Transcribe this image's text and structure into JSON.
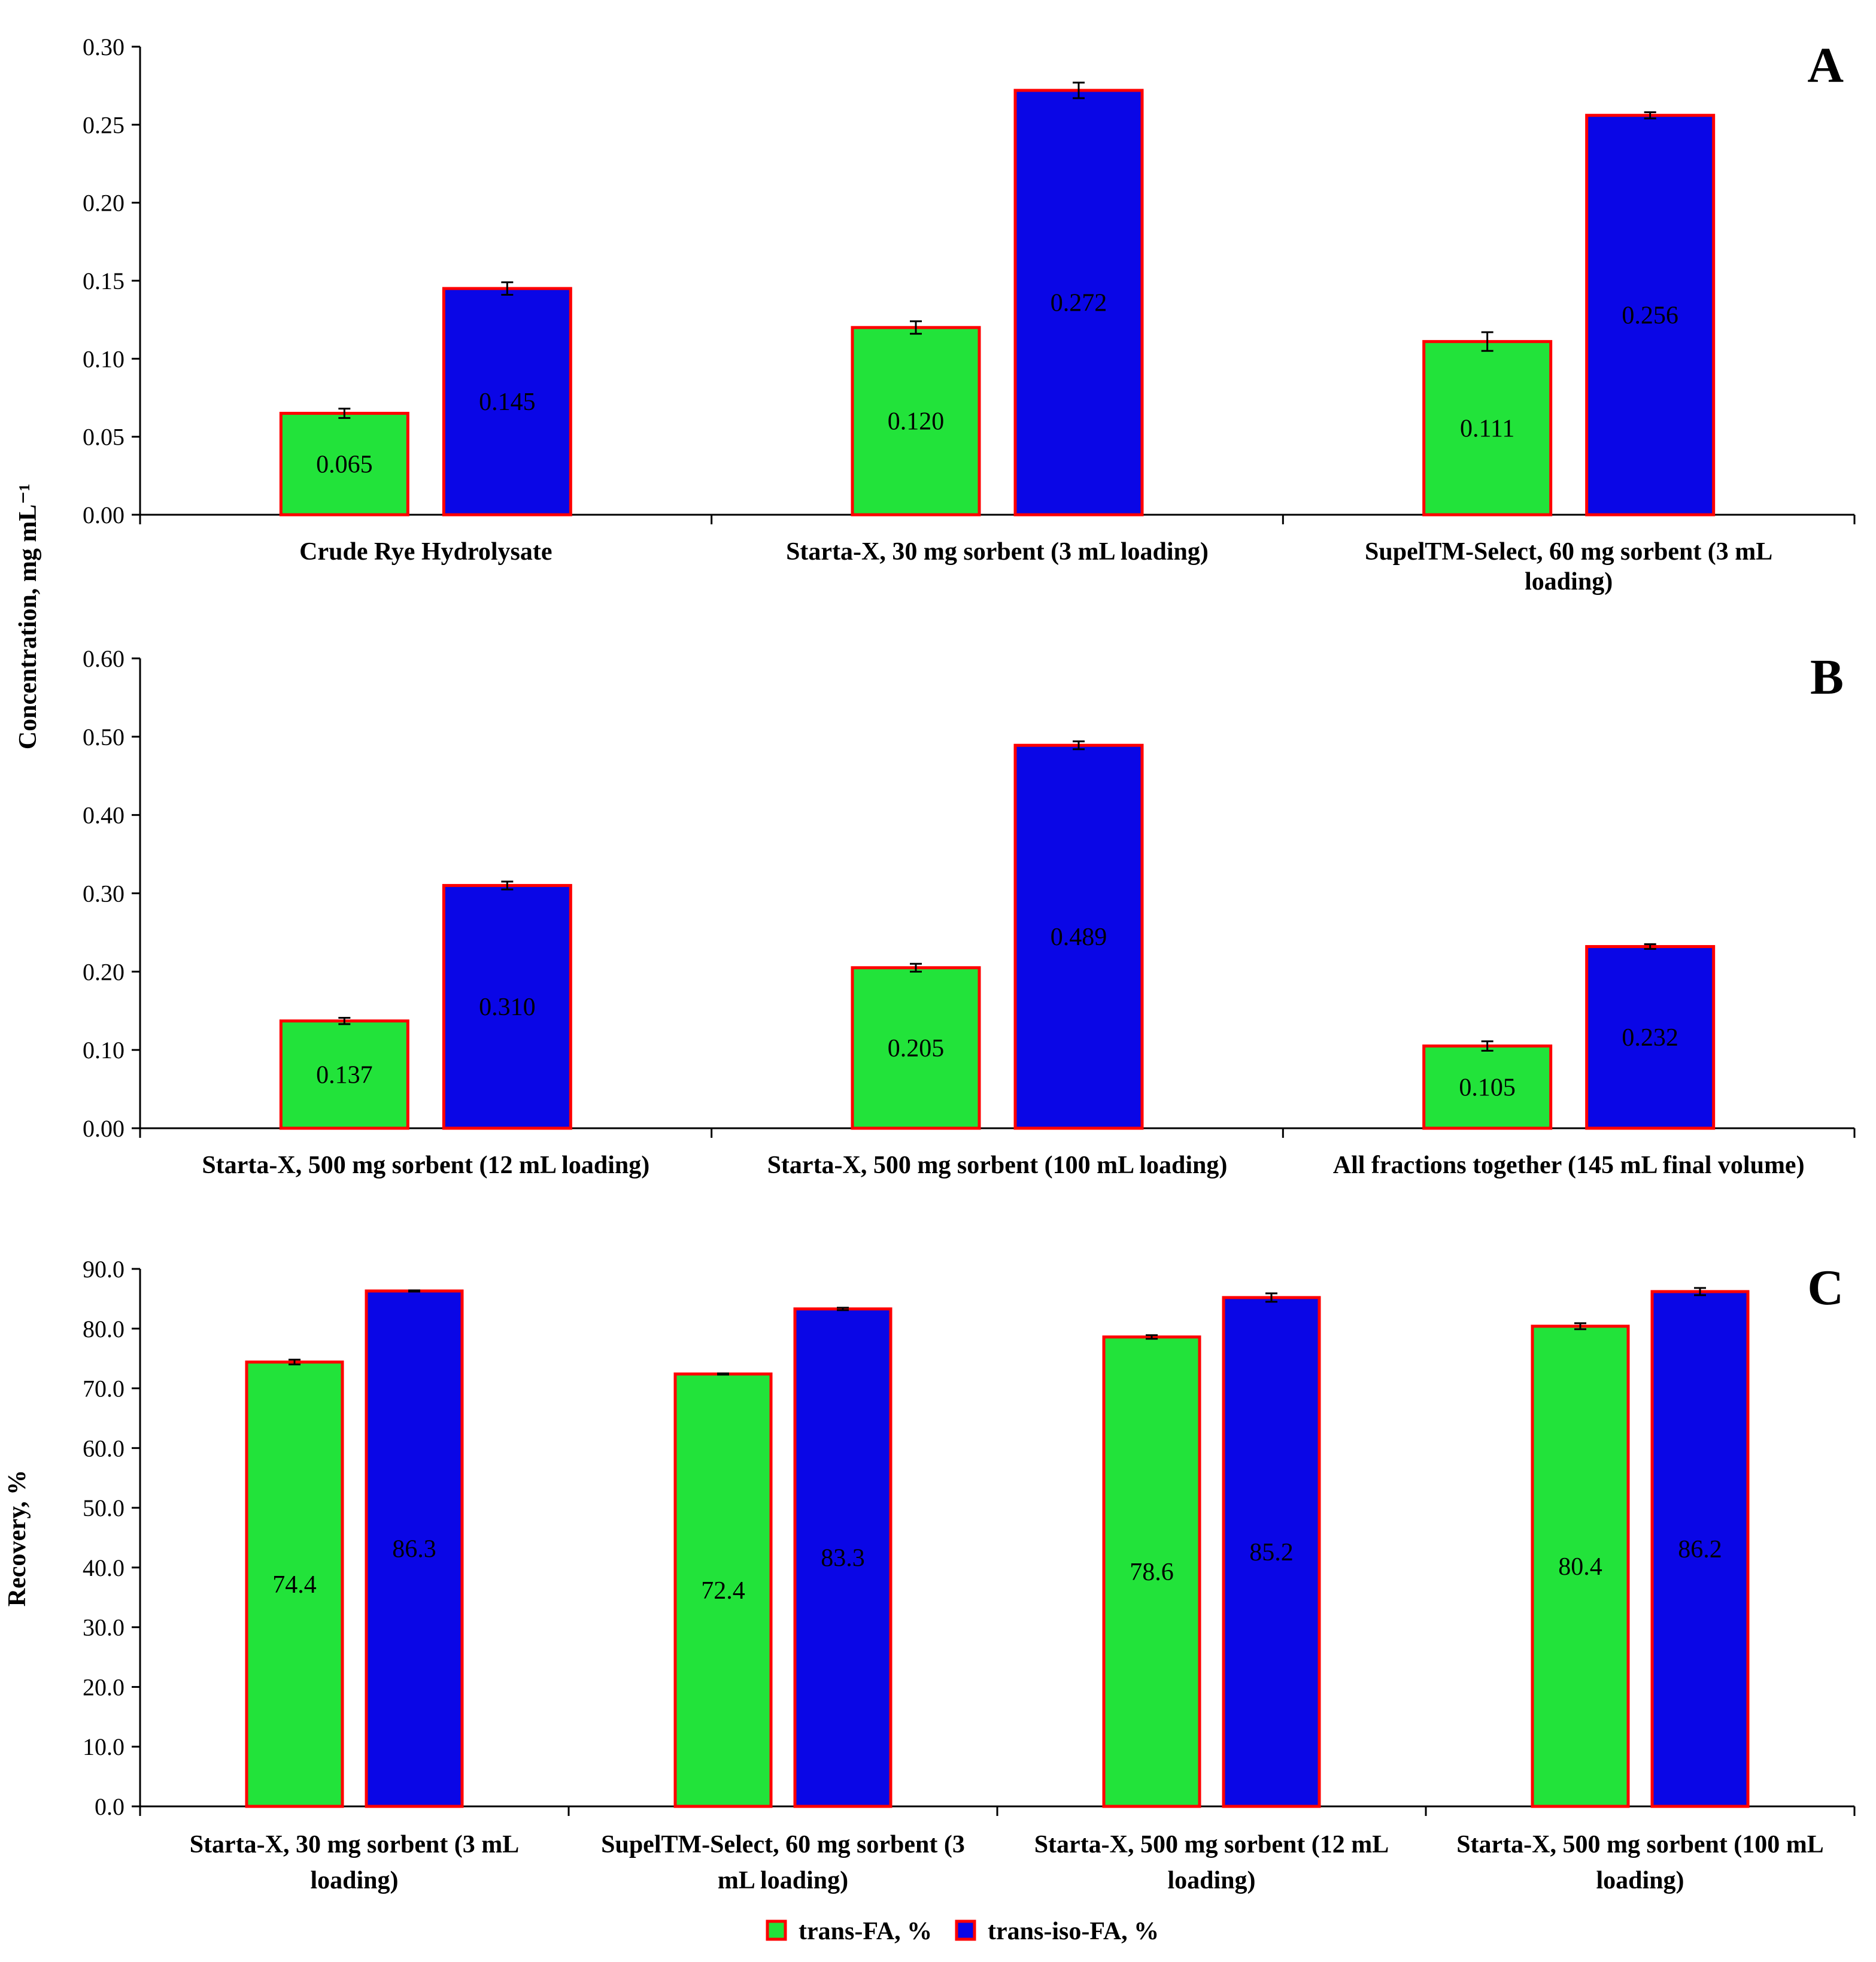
{
  "chart_data": [
    {
      "type": "bar",
      "panel": "A",
      "ylabel": "Concentration, mg mL⁻¹",
      "ylim": [
        0,
        0.3
      ],
      "ytick_step": 0.05,
      "ytick_labels": [
        "0.00",
        "0.05",
        "0.10",
        "0.15",
        "0.20",
        "0.25",
        "0.30"
      ],
      "categories": [
        [
          "Crude Rye Hydrolysate"
        ],
        [
          "Starta-X, 30 mg sorbent (3 mL loading)"
        ],
        [
          "SupelTM-Select, 60 mg sorbent (3 mL",
          "loading)"
        ]
      ],
      "series": [
        {
          "name": "trans-FA, %",
          "values": [
            0.065,
            0.12,
            0.111
          ],
          "labels": [
            "0.065",
            "0.120",
            "0.111"
          ],
          "errors": [
            0.003,
            0.004,
            0.006
          ]
        },
        {
          "name": "trans-iso-FA, %",
          "values": [
            0.145,
            0.272,
            0.256
          ],
          "labels": [
            "0.145",
            "0.272",
            "0.256"
          ],
          "errors": [
            0.004,
            0.005,
            0.002
          ]
        }
      ]
    },
    {
      "type": "bar",
      "panel": "B",
      "ylabel": "",
      "ylim": [
        0,
        0.6
      ],
      "ytick_step": 0.1,
      "ytick_labels": [
        "0.00",
        "0.10",
        "0.20",
        "0.30",
        "0.40",
        "0.50",
        "0.60"
      ],
      "categories": [
        [
          "Starta-X, 500 mg sorbent (12 mL loading)"
        ],
        [
          "Starta-X, 500 mg sorbent (100 mL loading)"
        ],
        [
          "All fractions together (145 mL final volume)"
        ]
      ],
      "series": [
        {
          "name": "trans-FA, %",
          "values": [
            0.137,
            0.205,
            0.105
          ],
          "labels": [
            "0.137",
            "0.205",
            "0.105"
          ],
          "errors": [
            0.004,
            0.005,
            0.006
          ]
        },
        {
          "name": "trans-iso-FA, %",
          "values": [
            0.31,
            0.489,
            0.232
          ],
          "labels": [
            "0.310",
            "0.489",
            "0.232"
          ],
          "errors": [
            0.005,
            0.005,
            0.003
          ]
        }
      ]
    },
    {
      "type": "bar",
      "panel": "C",
      "ylabel": "Recovery, %",
      "ylim": [
        0,
        90
      ],
      "ytick_step": 10,
      "ytick_labels": [
        "0.0",
        "10.0",
        "20.0",
        "30.0",
        "40.0",
        "50.0",
        "60.0",
        "70.0",
        "80.0",
        "90.0"
      ],
      "categories": [
        [
          "Starta-X, 30 mg sorbent (3 mL",
          "loading)"
        ],
        [
          "SupelTM-Select, 60 mg sorbent (3",
          "mL loading)"
        ],
        [
          "Starta-X, 500 mg sorbent (12 mL",
          "loading)"
        ],
        [
          "Starta-X, 500 mg sorbent (100 mL",
          "loading)"
        ]
      ],
      "series": [
        {
          "name": "trans-FA, %",
          "values": [
            74.4,
            72.4,
            78.6,
            80.4
          ],
          "labels": [
            "74.4",
            "72.4",
            "78.6",
            "80.4"
          ],
          "errors": [
            0.4,
            0.1,
            0.3,
            0.5
          ]
        },
        {
          "name": "trans-iso-FA, %",
          "values": [
            86.3,
            83.3,
            85.2,
            86.2
          ],
          "labels": [
            "86.3",
            "83.3",
            "85.2",
            "86.2"
          ],
          "errors": [
            0.1,
            0.2,
            0.7,
            0.6
          ]
        }
      ]
    }
  ],
  "legend": {
    "items": [
      {
        "name": "trans-FA, %",
        "color": "#22e33a"
      },
      {
        "name": "trans-iso-FA, %",
        "color": "#0a06e6"
      }
    ]
  },
  "colors": {
    "series_fill": [
      "#22e33a",
      "#0a06e6"
    ],
    "bar_outline": "#ff0000",
    "axis": "#000000"
  }
}
